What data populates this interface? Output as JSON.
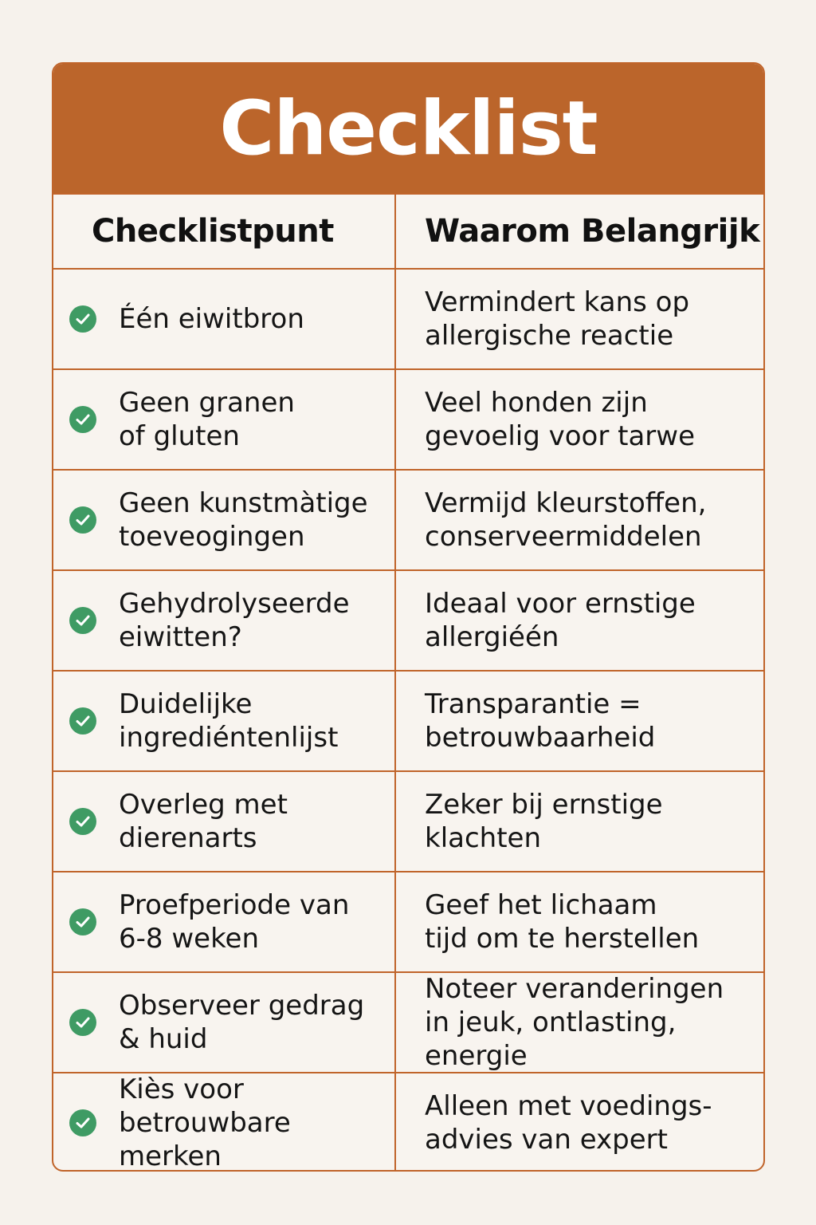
{
  "title": "Checklist",
  "columns": [
    "Checklistpunt",
    "Waarom Belangrijk"
  ],
  "colors": {
    "header_bg": "#bb652b",
    "border": "#c0642a",
    "check": "#3f9b64",
    "background": "#f6f2ec"
  },
  "check_icon": "check-circle-icon",
  "rows": [
    {
      "item": "Één eiwitbron",
      "reason": "Vermindert kans op\nallergische reactie"
    },
    {
      "item": "Geen granen\nof gluten",
      "reason": "Veel honden zijn\ngevoelig voor tarwe"
    },
    {
      "item": "Geen kunstmàtige\ntoeveogingen",
      "reason": "Vermijd kleurstoffen,\nconserveermiddelen"
    },
    {
      "item": "Gehydrolyseerde\neiwitten?",
      "reason": "Ideaal voor ernstige\nallergiéén"
    },
    {
      "item": "Duidelijke\ningrediéntenlijst",
      "reason": "Transparantie =\nbetrouwbaarheid"
    },
    {
      "item": "Overleg met\ndierenarts",
      "reason": "Zeker bij ernstige\nklachten"
    },
    {
      "item": "Proefperiode van\n6-8 weken",
      "reason": "Geef het lichaam\ntijd om te herstellen"
    },
    {
      "item": "Observeer gedrag\n& huid",
      "reason": "Noteer veranderingen\nin jeuk, ontlasting, energie"
    },
    {
      "item": "Kiès voor\nbetrouwbare merken",
      "reason": "Alleen met voedings-\nadvies van expert"
    }
  ]
}
